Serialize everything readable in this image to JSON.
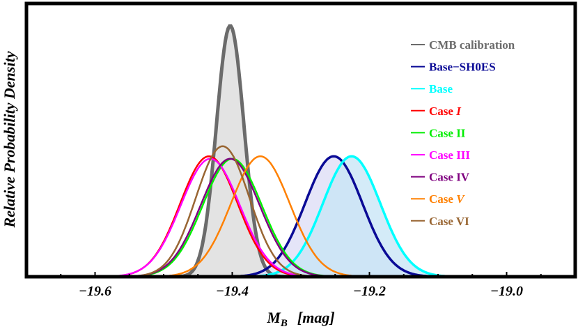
{
  "chart_data": {
    "type": "line",
    "title": "",
    "xlabel": "M_B [mag]",
    "xlabel_main": "M",
    "xlabel_sub": "B",
    "xlabel_unit": "[mag]",
    "ylabel": "Relative Probability Density",
    "xlim": [
      -19.7,
      -18.9
    ],
    "ylim": [
      0,
      1.05
    ],
    "xticks": [
      -19.6,
      -19.4,
      -19.2,
      -19.0
    ],
    "xtick_labels": [
      "−19.6",
      "−19.4",
      "−19.2",
      "−19.0"
    ],
    "grid": false,
    "legend_position": "top-right",
    "series": [
      {
        "name": "CMB calibration",
        "color": "#6b6b6b",
        "mean": -19.403,
        "sigma": 0.02,
        "peak": 1.0,
        "fill": "#d9d9d9",
        "width": 5
      },
      {
        "name": "Base−SH0ES",
        "color": "#0a0a96",
        "mean": -19.252,
        "sigma": 0.042,
        "peak": 0.48,
        "fill": "#dcdcf5",
        "width": 3.5
      },
      {
        "name": "Base",
        "color": "#00ffff",
        "mean": -19.226,
        "sigma": 0.042,
        "peak": 0.48,
        "fill": "#c6e4f5",
        "width": 3.5
      },
      {
        "name": "Case I",
        "label_main": "Case ",
        "label_italic": "I",
        "color": "#ff0000",
        "mean": -19.434,
        "sigma": 0.042,
        "peak": 0.48,
        "width": 2.5
      },
      {
        "name": "Case II",
        "color": "#00ee00",
        "mean": -19.4,
        "sigma": 0.043,
        "peak": 0.47,
        "width": 2.5
      },
      {
        "name": "Case III",
        "color": "#ff00ff",
        "mean": -19.432,
        "sigma": 0.043,
        "peak": 0.47,
        "width": 2.5
      },
      {
        "name": "Case IV",
        "color": "#7f007f",
        "mean": -19.403,
        "sigma": 0.043,
        "peak": 0.47,
        "width": 2.5
      },
      {
        "name": "Case V",
        "label_main": "Case ",
        "label_italic": "V",
        "color": "#ff8000",
        "mean": -19.359,
        "sigma": 0.043,
        "peak": 0.48,
        "width": 2.5
      },
      {
        "name": "Case VI",
        "color": "#996633",
        "mean": -19.414,
        "sigma": 0.039,
        "peak": 0.52,
        "width": 2.5
      }
    ]
  }
}
